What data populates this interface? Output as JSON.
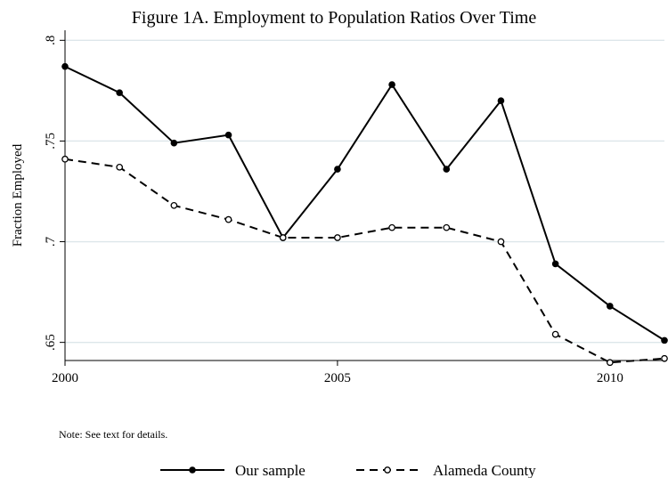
{
  "title": "Figure 1A. Employment to Population Ratios Over Time",
  "note": "Note: See text for details.",
  "colors": {
    "line": "#000000",
    "grid": "#dde6ea",
    "background": "#ffffff"
  },
  "chart_data": {
    "type": "line",
    "title": "Figure 1A. Employment to Population Ratios Over Time",
    "xlabel": "",
    "ylabel": "Fraction Employed",
    "xlim": [
      2000,
      2011
    ],
    "ylim": [
      0.641,
      0.805
    ],
    "x_ticks": [
      2000,
      2005,
      2010
    ],
    "x_tick_labels": [
      "2000",
      "2005",
      "2010"
    ],
    "y_ticks": [
      0.65,
      0.7,
      0.75,
      0.8
    ],
    "y_tick_labels": [
      ".65",
      ".7",
      ".75",
      ".8"
    ],
    "grid": true,
    "legend_position": "bottom",
    "x": [
      2000,
      2001,
      2002,
      2003,
      2004,
      2005,
      2006,
      2007,
      2008,
      2009,
      2010,
      2011
    ],
    "series": [
      {
        "name": "Our sample",
        "style": "solid",
        "marker": "filled-circle",
        "values": [
          0.787,
          0.774,
          0.749,
          0.753,
          0.702,
          0.736,
          0.778,
          0.736,
          0.77,
          0.689,
          0.668,
          0.651
        ]
      },
      {
        "name": "Alameda County",
        "style": "dashed",
        "marker": "hollow-circle",
        "values": [
          0.741,
          0.737,
          0.718,
          0.711,
          0.702,
          0.702,
          0.707,
          0.707,
          0.7,
          0.654,
          0.64,
          0.642
        ]
      }
    ]
  }
}
